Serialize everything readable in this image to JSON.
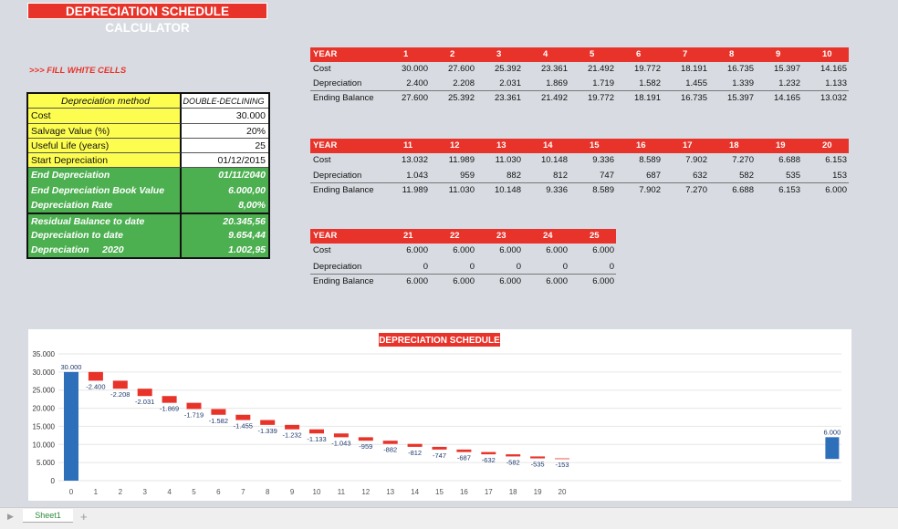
{
  "title": "DEPRECIATION SCHEDULE CALCULATOR",
  "instruction": ">>> FILL WHITE CELLS",
  "inputs": [
    {
      "label": "Depreciation method",
      "value": "DOUBLE-DECLINING"
    },
    {
      "label": "Cost",
      "value": "30.000"
    },
    {
      "label": "Salvage Value (%)",
      "value": "20%"
    },
    {
      "label": "Useful Life (years)",
      "value": "25"
    },
    {
      "label": "Start Depreciation",
      "value": "01/12/2015"
    }
  ],
  "outputs": [
    {
      "label": "End Depreciation",
      "value": "01/11/2040"
    },
    {
      "label": "End Depreciation Book Value",
      "value": "6.000,00"
    },
    {
      "label": "Depreciation Rate",
      "value": "8,00%"
    },
    {
      "label": "Residual Balance to date",
      "value": "20.345,56"
    },
    {
      "label": "Depreciation to date",
      "value": "9.654,44"
    },
    {
      "label": "Depreciation     2020",
      "value": "1.002,95"
    }
  ],
  "row_labels": {
    "year": "YEAR",
    "cost": "Cost",
    "dep": "Depreciation",
    "end": "Ending Balance"
  },
  "tables": [
    {
      "years": [
        "1",
        "2",
        "3",
        "4",
        "5",
        "6",
        "7",
        "8",
        "9",
        "10"
      ],
      "cost": [
        "30.000",
        "27.600",
        "25.392",
        "23.361",
        "21.492",
        "19.772",
        "18.191",
        "16.735",
        "15.397",
        "14.165"
      ],
      "dep": [
        "2.400",
        "2.208",
        "2.031",
        "1.869",
        "1.719",
        "1.582",
        "1.455",
        "1.339",
        "1.232",
        "1.133"
      ],
      "end": [
        "27.600",
        "25.392",
        "23.361",
        "21.492",
        "19.772",
        "18.191",
        "16.735",
        "15.397",
        "14.165",
        "13.032"
      ]
    },
    {
      "years": [
        "11",
        "12",
        "13",
        "14",
        "15",
        "16",
        "17",
        "18",
        "19",
        "20"
      ],
      "cost": [
        "13.032",
        "11.989",
        "11.030",
        "10.148",
        "9.336",
        "8.589",
        "7.902",
        "7.270",
        "6.688",
        "6.153"
      ],
      "dep": [
        "1.043",
        "959",
        "882",
        "812",
        "747",
        "687",
        "632",
        "582",
        "535",
        "153"
      ],
      "end": [
        "11.989",
        "11.030",
        "10.148",
        "9.336",
        "8.589",
        "7.902",
        "7.270",
        "6.688",
        "6.153",
        "6.000"
      ]
    },
    {
      "years": [
        "21",
        "22",
        "23",
        "24",
        "25"
      ],
      "cost": [
        "6.000",
        "6.000",
        "6.000",
        "6.000",
        "6.000"
      ],
      "dep": [
        "0",
        "0",
        "0",
        "0",
        "0"
      ],
      "end": [
        "6.000",
        "6.000",
        "6.000",
        "6.000",
        "6.000"
      ]
    }
  ],
  "chart_data": {
    "type": "bar",
    "title": "DEPRECIATION SCHEDULE",
    "ylim": [
      0,
      35000
    ],
    "yticks": [
      "0",
      "5.000",
      "10.000",
      "15.000",
      "20.000",
      "25.000",
      "30.000",
      "35.000"
    ],
    "categories": [
      "0",
      "1",
      "2",
      "3",
      "4",
      "5",
      "6",
      "7",
      "8",
      "9",
      "10",
      "11",
      "12",
      "13",
      "14",
      "15",
      "16",
      "17",
      "18",
      "19",
      "20"
    ],
    "start": {
      "value": 30000,
      "label": "30.000"
    },
    "decrements": [
      2400,
      2208,
      2031,
      1869,
      1719,
      1582,
      1455,
      1339,
      1232,
      1133,
      1043,
      959,
      882,
      812,
      747,
      687,
      632,
      582,
      535,
      153
    ],
    "decrement_labels": [
      "-2.400",
      "-2.208",
      "-2.031",
      "-1.869",
      "-1.719",
      "-1.582",
      "-1.455",
      "-1.339",
      "-1.232",
      "-1.133",
      "-1.043",
      "-959",
      "-882",
      "-812",
      "-747",
      "-687",
      "-632",
      "-582",
      "-535",
      "-153"
    ],
    "end": {
      "value": 6000,
      "label": "6.000"
    },
    "colors": {
      "total": "#2e6fba",
      "decrease": "#e8332a",
      "label": "#1f3a6e"
    },
    "grid": true
  },
  "sheet_tab": "Sheet1",
  "add_sheet": "+"
}
